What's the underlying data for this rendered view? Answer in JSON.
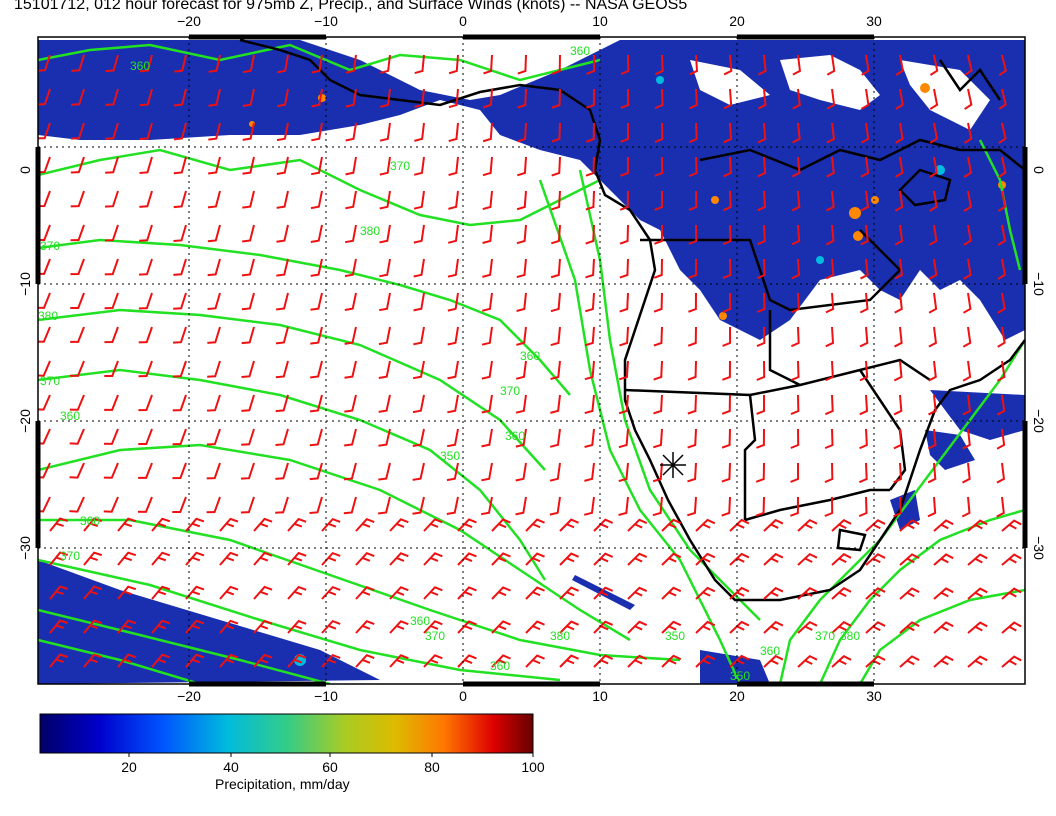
{
  "title": "15101712, 012 hour forecast for 975mb Z, Precip., and Surface Winds (knots) -- NASA GEOS5",
  "map": {
    "lon_ticks": [
      "−20",
      "−10",
      "0",
      "10",
      "20",
      "30"
    ],
    "lat_ticks": [
      "0",
      "−10",
      "−20",
      "−30"
    ],
    "contour_labels": [
      "360",
      "360",
      "370",
      "380",
      "370",
      "360",
      "370",
      "380",
      "360",
      "370",
      "360",
      "350",
      "360",
      "370",
      "360",
      "370",
      "380",
      "350",
      "360",
      "350",
      "360",
      "370",
      "380"
    ],
    "colors": {
      "contour": "#22e022",
      "barb": "#ee1111",
      "coast": "#000000",
      "precip_low": "#1a2fb0",
      "precip_high": "#ff8800"
    }
  },
  "colorbar": {
    "ticks": [
      "20",
      "40",
      "60",
      "80",
      "100"
    ],
    "title": "Precipitation, mm/day",
    "range": [
      0,
      100
    ]
  }
}
